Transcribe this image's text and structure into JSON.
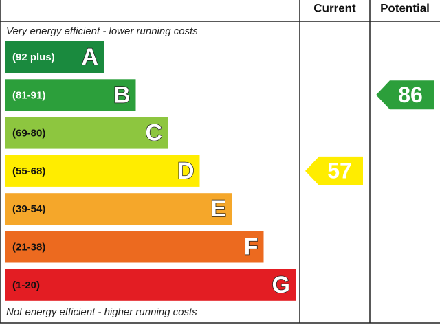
{
  "header": {
    "current": "Current",
    "potential": "Potential"
  },
  "top_note": "Very energy efficient - lower running costs",
  "bottom_note": "Not energy efficient - higher running costs",
  "bands": [
    {
      "range": "(92 plus)",
      "letter": "A",
      "color": "#1a8a3e",
      "text_color": "#ffffff"
    },
    {
      "range": "(81-91)",
      "letter": "B",
      "color": "#2c9f3b",
      "text_color": "#ffffff"
    },
    {
      "range": "(69-80)",
      "letter": "C",
      "color": "#8dc63f",
      "text_color": "#111111"
    },
    {
      "range": "(55-68)",
      "letter": "D",
      "color": "#ffed00",
      "text_color": "#111111"
    },
    {
      "range": "(39-54)",
      "letter": "E",
      "color": "#f5a72a",
      "text_color": "#111111"
    },
    {
      "range": "(21-38)",
      "letter": "F",
      "color": "#ec6a1f",
      "text_color": "#111111"
    },
    {
      "range": "(1-20)",
      "letter": "G",
      "color": "#e31d23",
      "text_color": "#111111"
    }
  ],
  "current": 57,
  "potential": 86
}
